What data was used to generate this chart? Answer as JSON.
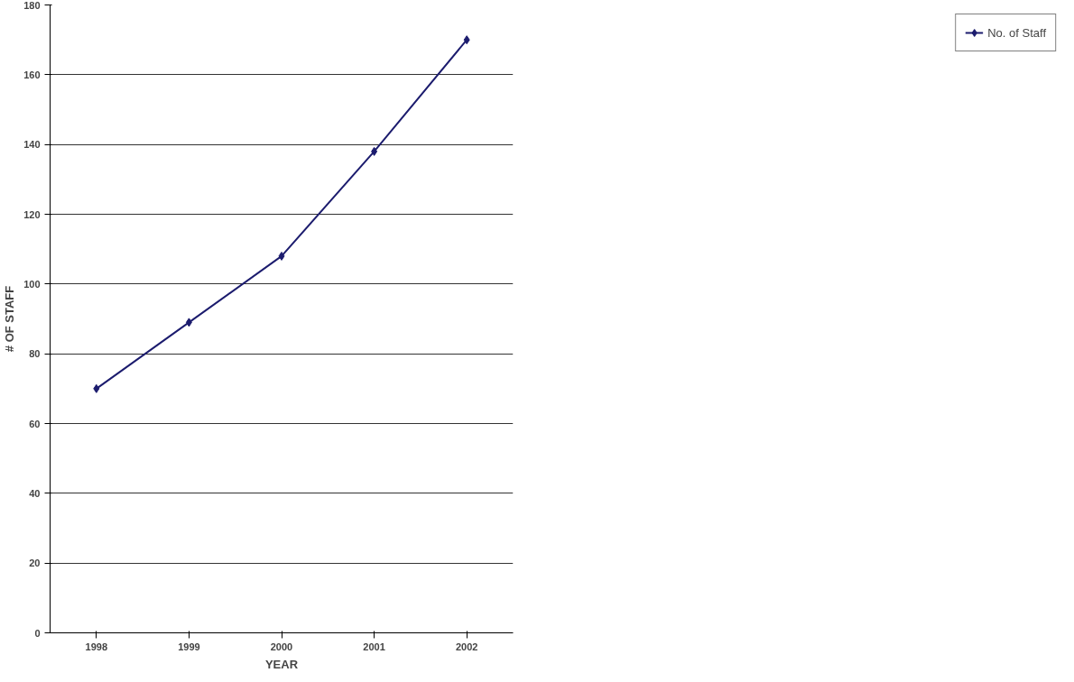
{
  "chart_data": {
    "type": "line",
    "xlabel": "YEAR",
    "ylabel": "# OF STAFF",
    "categories": [
      "1998",
      "1999",
      "2000",
      "2001",
      "2002"
    ],
    "series": [
      {
        "name": "No. of Staff",
        "color": "#1c1c6e",
        "values": [
          70,
          89,
          108,
          138,
          170
        ]
      }
    ],
    "ylim": [
      0,
      180
    ],
    "yticks": [
      0,
      20,
      40,
      60,
      80,
      100,
      120,
      140,
      160,
      180
    ],
    "grid": "y",
    "legend": "right",
    "marker": "diamond",
    "line_style": "solid"
  }
}
